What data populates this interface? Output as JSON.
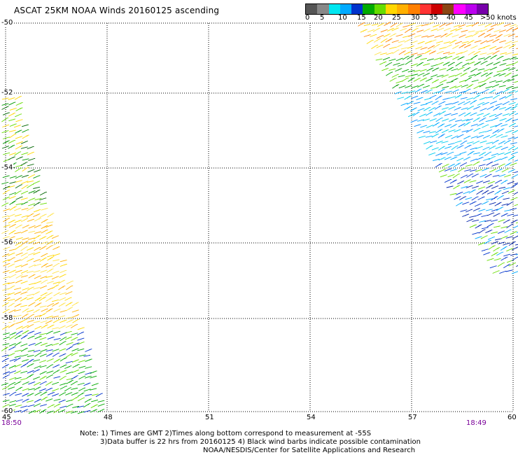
{
  "header": {
    "title": "ASCAT 25KM NOAA Winds 20160125 ascending"
  },
  "legend": {
    "colors": [
      "#555555",
      "#888888",
      "#00e6f0",
      "#00aaff",
      "#0033cc",
      "#00aa00",
      "#66dd00",
      "#ffd700",
      "#ffb000",
      "#ff7f00",
      "#ff3333",
      "#cc0000",
      "#8b4513",
      "#ff00ff",
      "#bb00ee",
      "#7700aa"
    ],
    "labels": [
      "0",
      "5",
      "10",
      "15",
      "20",
      "25",
      "30",
      "35",
      "40",
      "45",
      ">50 knots"
    ]
  },
  "map": {
    "lat_labels": [
      "-50",
      "-52",
      "-54",
      "-56",
      "-58",
      "-60"
    ],
    "lon_labels": [
      "45",
      "48",
      "51",
      "54",
      "57",
      "60"
    ],
    "times": {
      "left": "18:50",
      "right": "18:49"
    }
  },
  "notes": {
    "line1": "Note: 1) Times are GMT 2)Times along bottom correspond to measurement at -55S",
    "line2": "3)Data buffer is 22 hrs from 20160125 4) Black wind barbs indicate possible contamination",
    "line3": "NOAA/NESDIS/Center for Satellite Applications and Research"
  }
}
